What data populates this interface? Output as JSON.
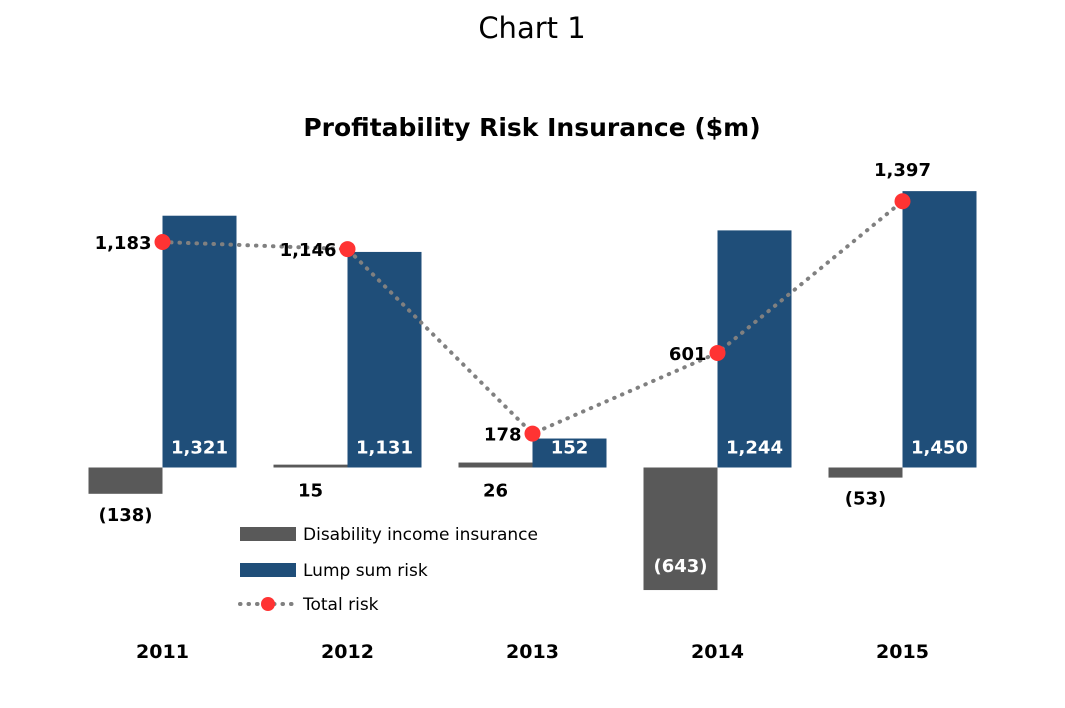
{
  "page_title": "Chart 1",
  "chart_data": {
    "type": "bar",
    "title": "Profitability Risk Insurance ($m)",
    "categories": [
      "2011",
      "2012",
      "2013",
      "2014",
      "2015"
    ],
    "series": [
      {
        "name": "Disability income insurance",
        "kind": "bar",
        "color": "#595959",
        "values": [
          -138,
          15,
          26,
          -643,
          -53
        ],
        "labels": [
          "(138)",
          "15",
          "26",
          "(643)",
          "(53)"
        ]
      },
      {
        "name": "Lump sum risk",
        "kind": "bar",
        "color": "#1f4e79",
        "values": [
          1321,
          1131,
          152,
          1244,
          1450
        ],
        "labels": [
          "1,321",
          "1,131",
          "152",
          "1,244",
          "1,450"
        ]
      },
      {
        "name": "Total risk",
        "kind": "line",
        "line_style": "dotted",
        "line_color": "#808080",
        "marker_color": "#ff3333",
        "values": [
          1183,
          1146,
          178,
          601,
          1397
        ],
        "labels": [
          "1,183",
          "1,146",
          "178",
          "601",
          "1,397"
        ]
      }
    ],
    "xlabel": "",
    "ylabel": "",
    "ylim": [
      -700,
      1450
    ],
    "grid": false,
    "legend": "bottom-left"
  }
}
